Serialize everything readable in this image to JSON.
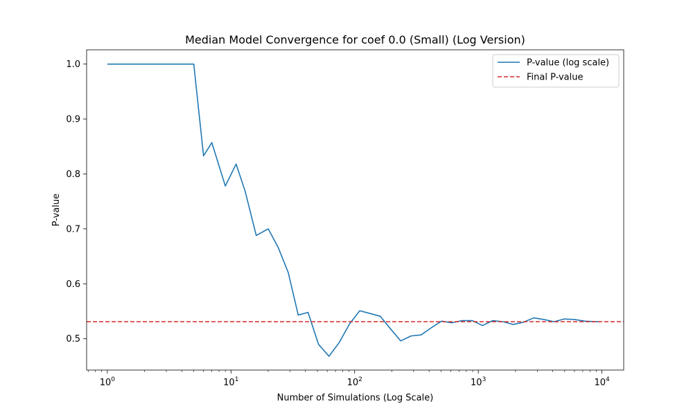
{
  "chart_data": {
    "type": "line",
    "title": "Median Model Convergence for coef 0.0 (Small) (Log Version)",
    "xlabel": "Number of Simulations (Log Scale)",
    "ylabel": "P-value",
    "xscale": "log",
    "xlim": [
      0.68,
      15000
    ],
    "ylim": [
      0.443,
      1.026
    ],
    "xticks": [
      {
        "value": 1,
        "base": "10",
        "exp": "0"
      },
      {
        "value": 10,
        "base": "10",
        "exp": "1"
      },
      {
        "value": 100,
        "base": "10",
        "exp": "2"
      },
      {
        "value": 1000,
        "base": "10",
        "exp": "3"
      },
      {
        "value": 10000,
        "base": "10",
        "exp": "4"
      }
    ],
    "yticks": [
      {
        "value": 0.5,
        "label": "0.5"
      },
      {
        "value": 0.6,
        "label": "0.6"
      },
      {
        "value": 0.7,
        "label": "0.7"
      },
      {
        "value": 0.8,
        "label": "0.8"
      },
      {
        "value": 0.9,
        "label": "0.9"
      },
      {
        "value": 1.0,
        "label": "1.0"
      }
    ],
    "grid": false,
    "legend_position": "upper right",
    "series": [
      {
        "name": "P-value (log scale)",
        "color": "#1f77b4",
        "style": "solid",
        "x": [
          1,
          5,
          6,
          7,
          9,
          11,
          13,
          16,
          20,
          24,
          29,
          35,
          42,
          51,
          62,
          75,
          91,
          110,
          133,
          161,
          195,
          236,
          285,
          345,
          417,
          505,
          611,
          739,
          894,
          1082,
          1309,
          1584,
          1916,
          2318,
          2805,
          3394,
          4106,
          4968,
          6010,
          7271,
          8797,
          9500
        ],
        "y": [
          1.0,
          1.0,
          0.833,
          0.857,
          0.778,
          0.818,
          0.769,
          0.688,
          0.7,
          0.667,
          0.621,
          0.543,
          0.548,
          0.49,
          0.468,
          0.493,
          0.527,
          0.551,
          0.546,
          0.541,
          0.518,
          0.496,
          0.505,
          0.507,
          0.52,
          0.532,
          0.529,
          0.533,
          0.533,
          0.524,
          0.533,
          0.531,
          0.526,
          0.53,
          0.538,
          0.535,
          0.531,
          0.536,
          0.535,
          0.532,
          0.531,
          0.531
        ]
      },
      {
        "name": "Final P-value",
        "color": "#d62728",
        "style": "dashed",
        "hline": 0.531
      }
    ]
  }
}
